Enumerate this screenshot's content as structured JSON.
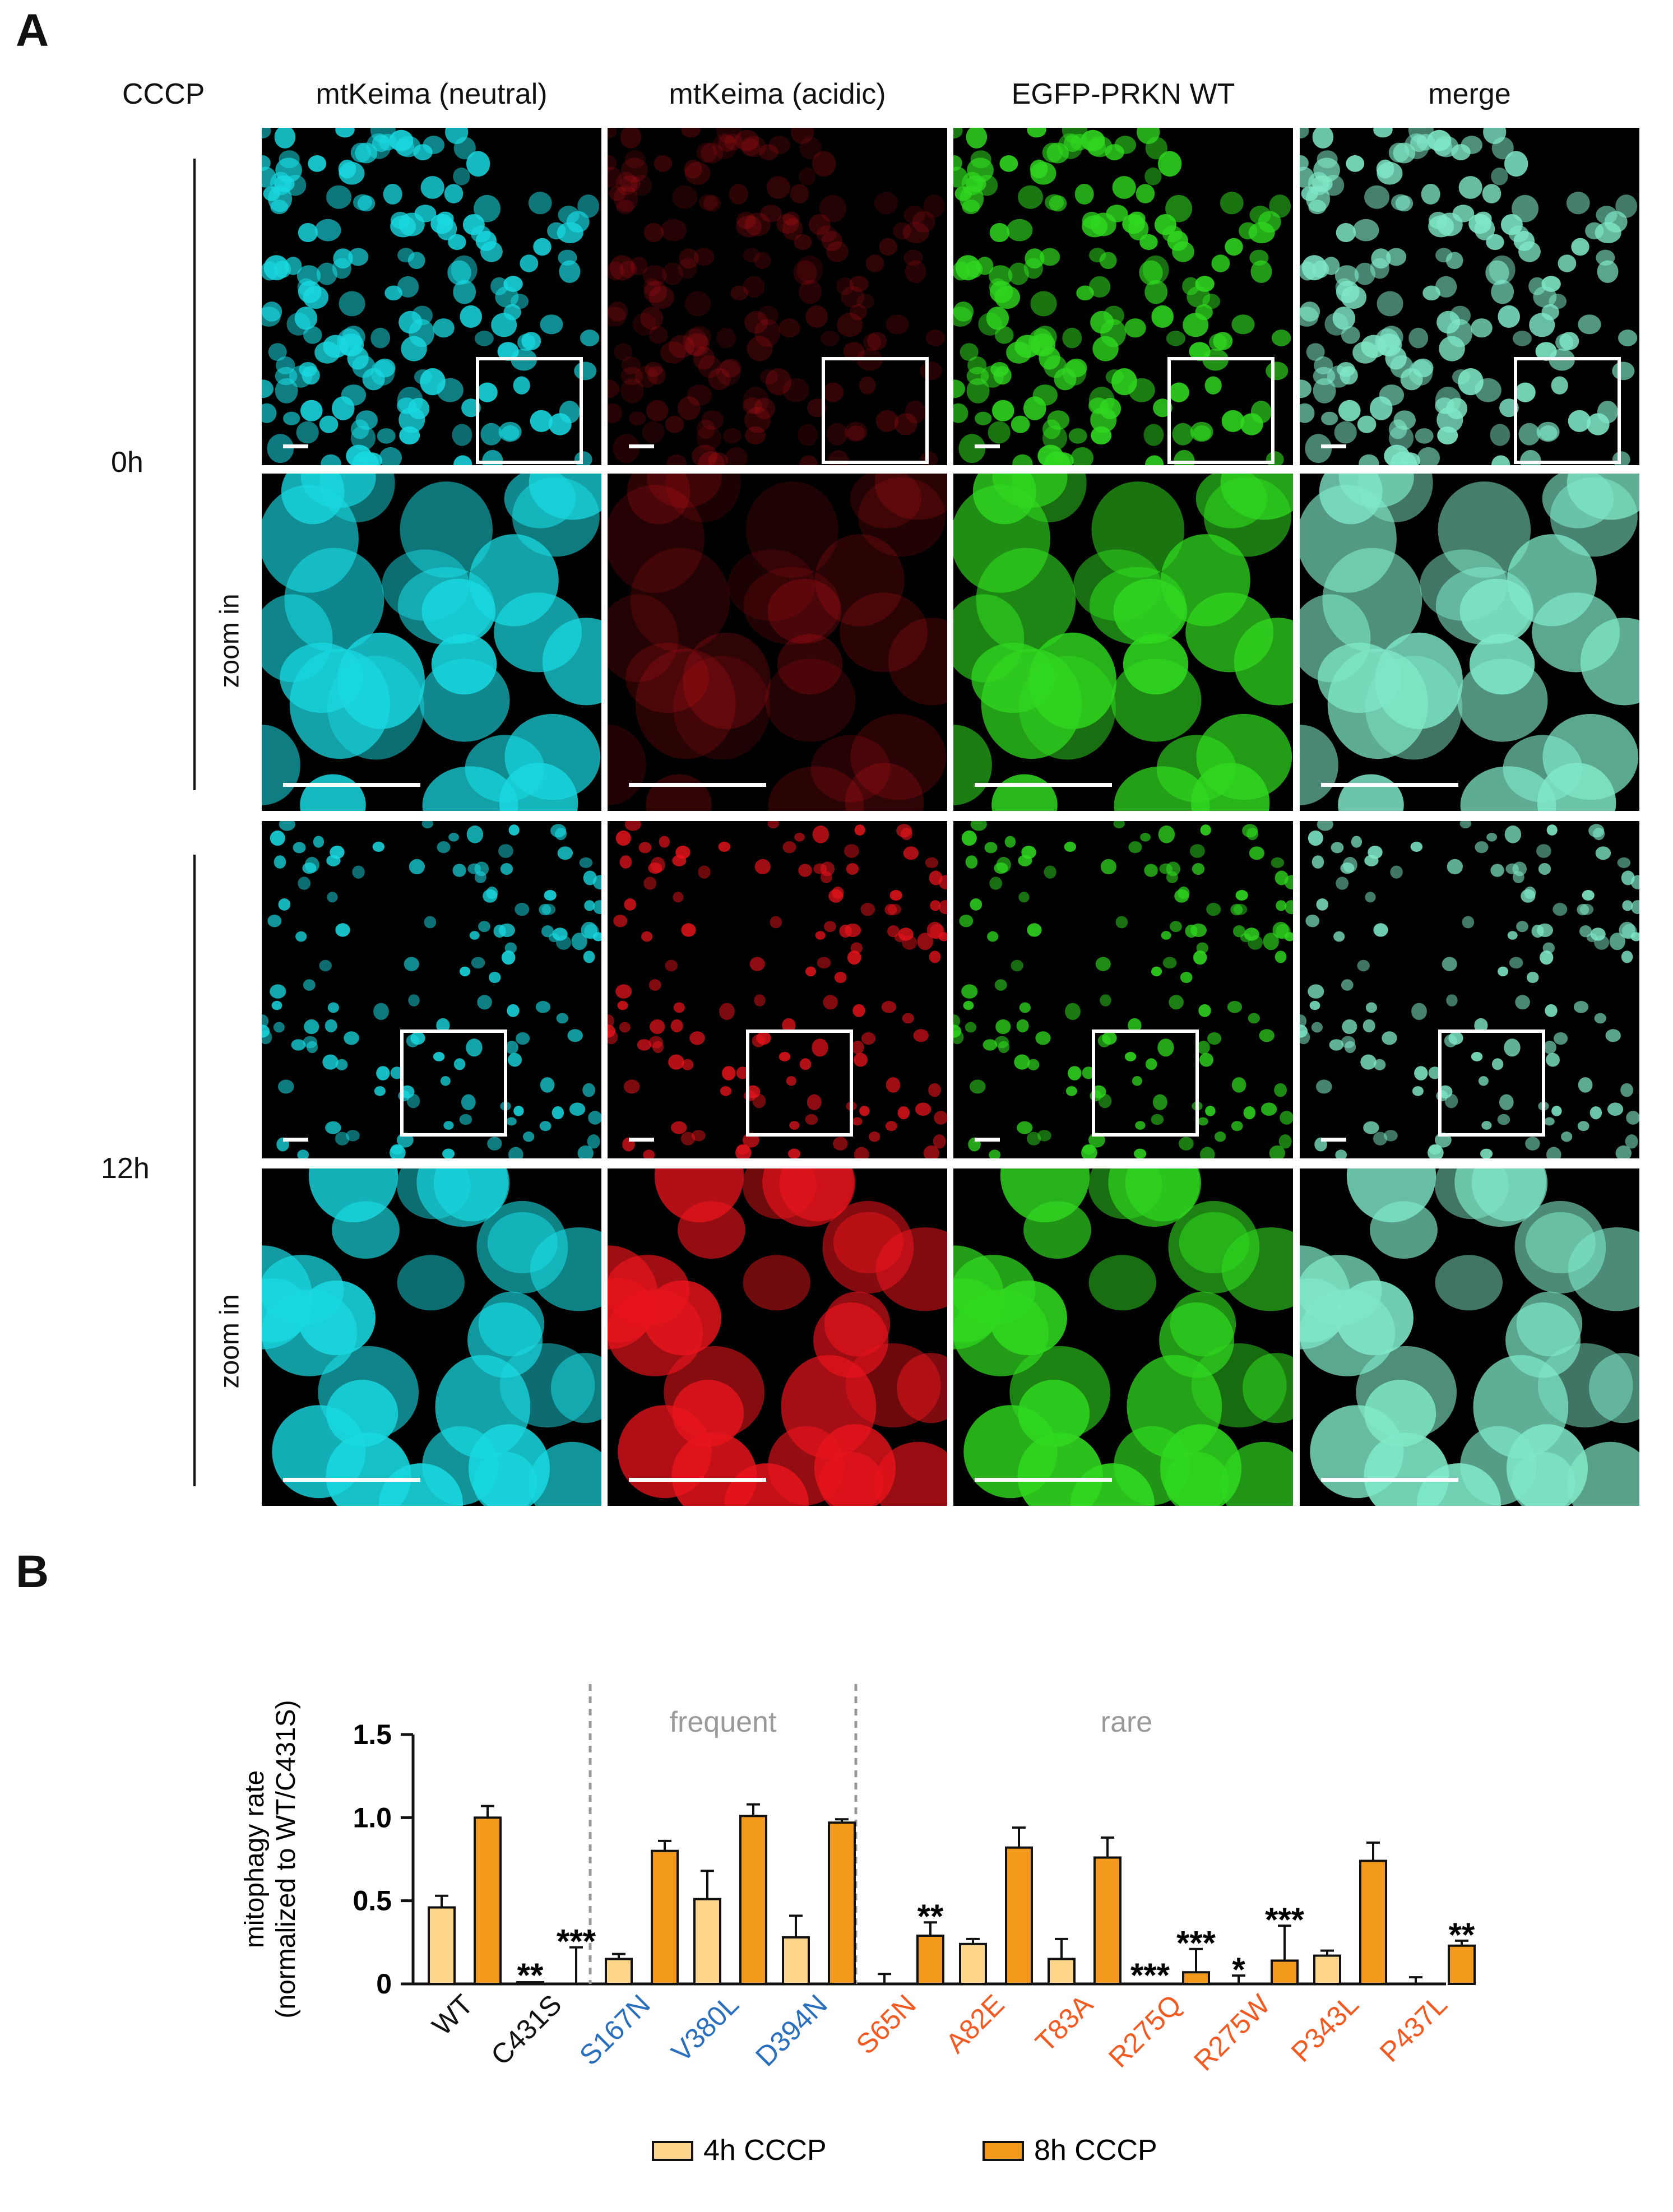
{
  "panel_a": {
    "letter": "A",
    "treatment_label": "CCCP",
    "columns": [
      "mtKeima (neutral)",
      "mtKeima (acidic)",
      "EGFP-PRKN WT",
      "merge"
    ],
    "rows": [
      {
        "time": "0h",
        "zoom_label": "zoom in"
      },
      {
        "time": "12h",
        "zoom_label": "zoom in"
      }
    ],
    "colors": {
      "neutral": "#19d8e0",
      "acidic": "#e8141c",
      "egfp": "#30d820",
      "merge": "#7fe8c8"
    }
  },
  "panel_b": {
    "letter": "B",
    "chart_data": {
      "type": "bar",
      "ylabel_line1": "mitophagy rate",
      "ylabel_line2": "(normalized to WT/C431S)",
      "ylim": [
        0,
        1.5
      ],
      "yticks": [
        "0",
        "0.5",
        "1.0",
        "1.5"
      ],
      "group_labels": {
        "frequent": "frequent",
        "rare": "rare"
      },
      "categories": [
        "WT",
        "C431S",
        "S167N",
        "V380L",
        "D394N",
        "S65N",
        "A82E",
        "T83A",
        "R275Q",
        "R275W",
        "P343L",
        "P437L"
      ],
      "category_colors": [
        "#111111",
        "#111111",
        "#2a6fbd",
        "#2a6fbd",
        "#2a6fbd",
        "#f25a22",
        "#f25a22",
        "#f25a22",
        "#f25a22",
        "#f25a22",
        "#f25a22",
        "#f25a22"
      ],
      "series": [
        {
          "name": "4h CCCP",
          "color": "#fdd68c",
          "values": [
            0.46,
            0.01,
            0.15,
            0.51,
            0.28,
            0.0,
            0.24,
            0.15,
            0.0,
            0.0,
            0.17,
            0.0
          ],
          "errors": [
            0.07,
            0.0,
            0.03,
            0.17,
            0.13,
            0.06,
            0.03,
            0.12,
            0.0,
            0.05,
            0.03,
            0.04
          ],
          "significance": [
            "",
            "**",
            "",
            "",
            "",
            "",
            "",
            "",
            "***",
            "*",
            "",
            ""
          ]
        },
        {
          "name": "8h CCCP",
          "color": "#f39a1c",
          "values": [
            1.0,
            0.0,
            0.8,
            1.01,
            0.97,
            0.29,
            0.82,
            0.76,
            0.07,
            0.14,
            0.74,
            0.23
          ],
          "errors": [
            0.07,
            0.22,
            0.06,
            0.07,
            0.02,
            0.08,
            0.12,
            0.12,
            0.14,
            0.21,
            0.11,
            0.03
          ],
          "significance": [
            "",
            "***",
            "",
            "",
            "",
            "**",
            "",
            "",
            "***",
            "***",
            "",
            "**"
          ]
        }
      ],
      "legend": [
        "4h CCCP",
        "8h CCCP"
      ]
    }
  }
}
